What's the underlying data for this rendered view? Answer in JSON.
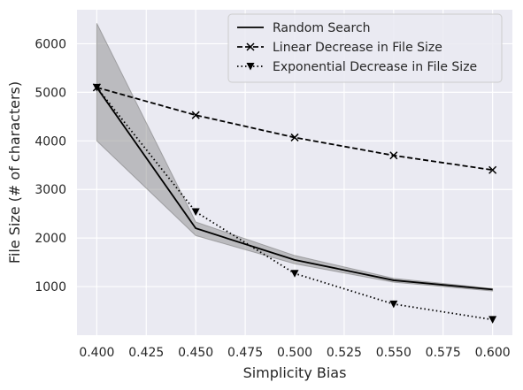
{
  "chart_data": {
    "type": "line",
    "title": "",
    "xlabel": "Simplicity Bias",
    "ylabel": "File Size (# of characters)",
    "xlim": [
      0.39,
      0.61
    ],
    "ylim": [
      0,
      6700
    ],
    "x_ticks": [
      "0.400",
      "0.425",
      "0.450",
      "0.475",
      "0.500",
      "0.525",
      "0.550",
      "0.575",
      "0.600"
    ],
    "y_ticks": [
      "1000",
      "2000",
      "3000",
      "4000",
      "5000",
      "6000"
    ],
    "grid": true,
    "legend_position": "top-right",
    "x": [
      0.4,
      0.45,
      0.5,
      0.55,
      0.6
    ],
    "series": [
      {
        "name": "Random Search",
        "style": "solid",
        "marker": "none",
        "color": "#000000",
        "values": [
          5100,
          2200,
          1550,
          1130,
          940
        ],
        "band_upper": [
          6420,
          2330,
          1640,
          1170,
          960
        ],
        "band_lower": [
          4000,
          2050,
          1470,
          1090,
          910
        ]
      },
      {
        "name": "Linear Decrease in File Size",
        "style": "dashed",
        "marker": "x",
        "color": "#000000",
        "values": [
          5100,
          4530,
          4070,
          3700,
          3400
        ]
      },
      {
        "name": "Exponential Decrease in File Size",
        "style": "dotted",
        "marker": "triangle-down",
        "color": "#000000",
        "values": [
          5100,
          2540,
          1270,
          640,
          320
        ]
      }
    ],
    "band_color": "#8c8c8c",
    "background_color": "#eaeaf2"
  }
}
